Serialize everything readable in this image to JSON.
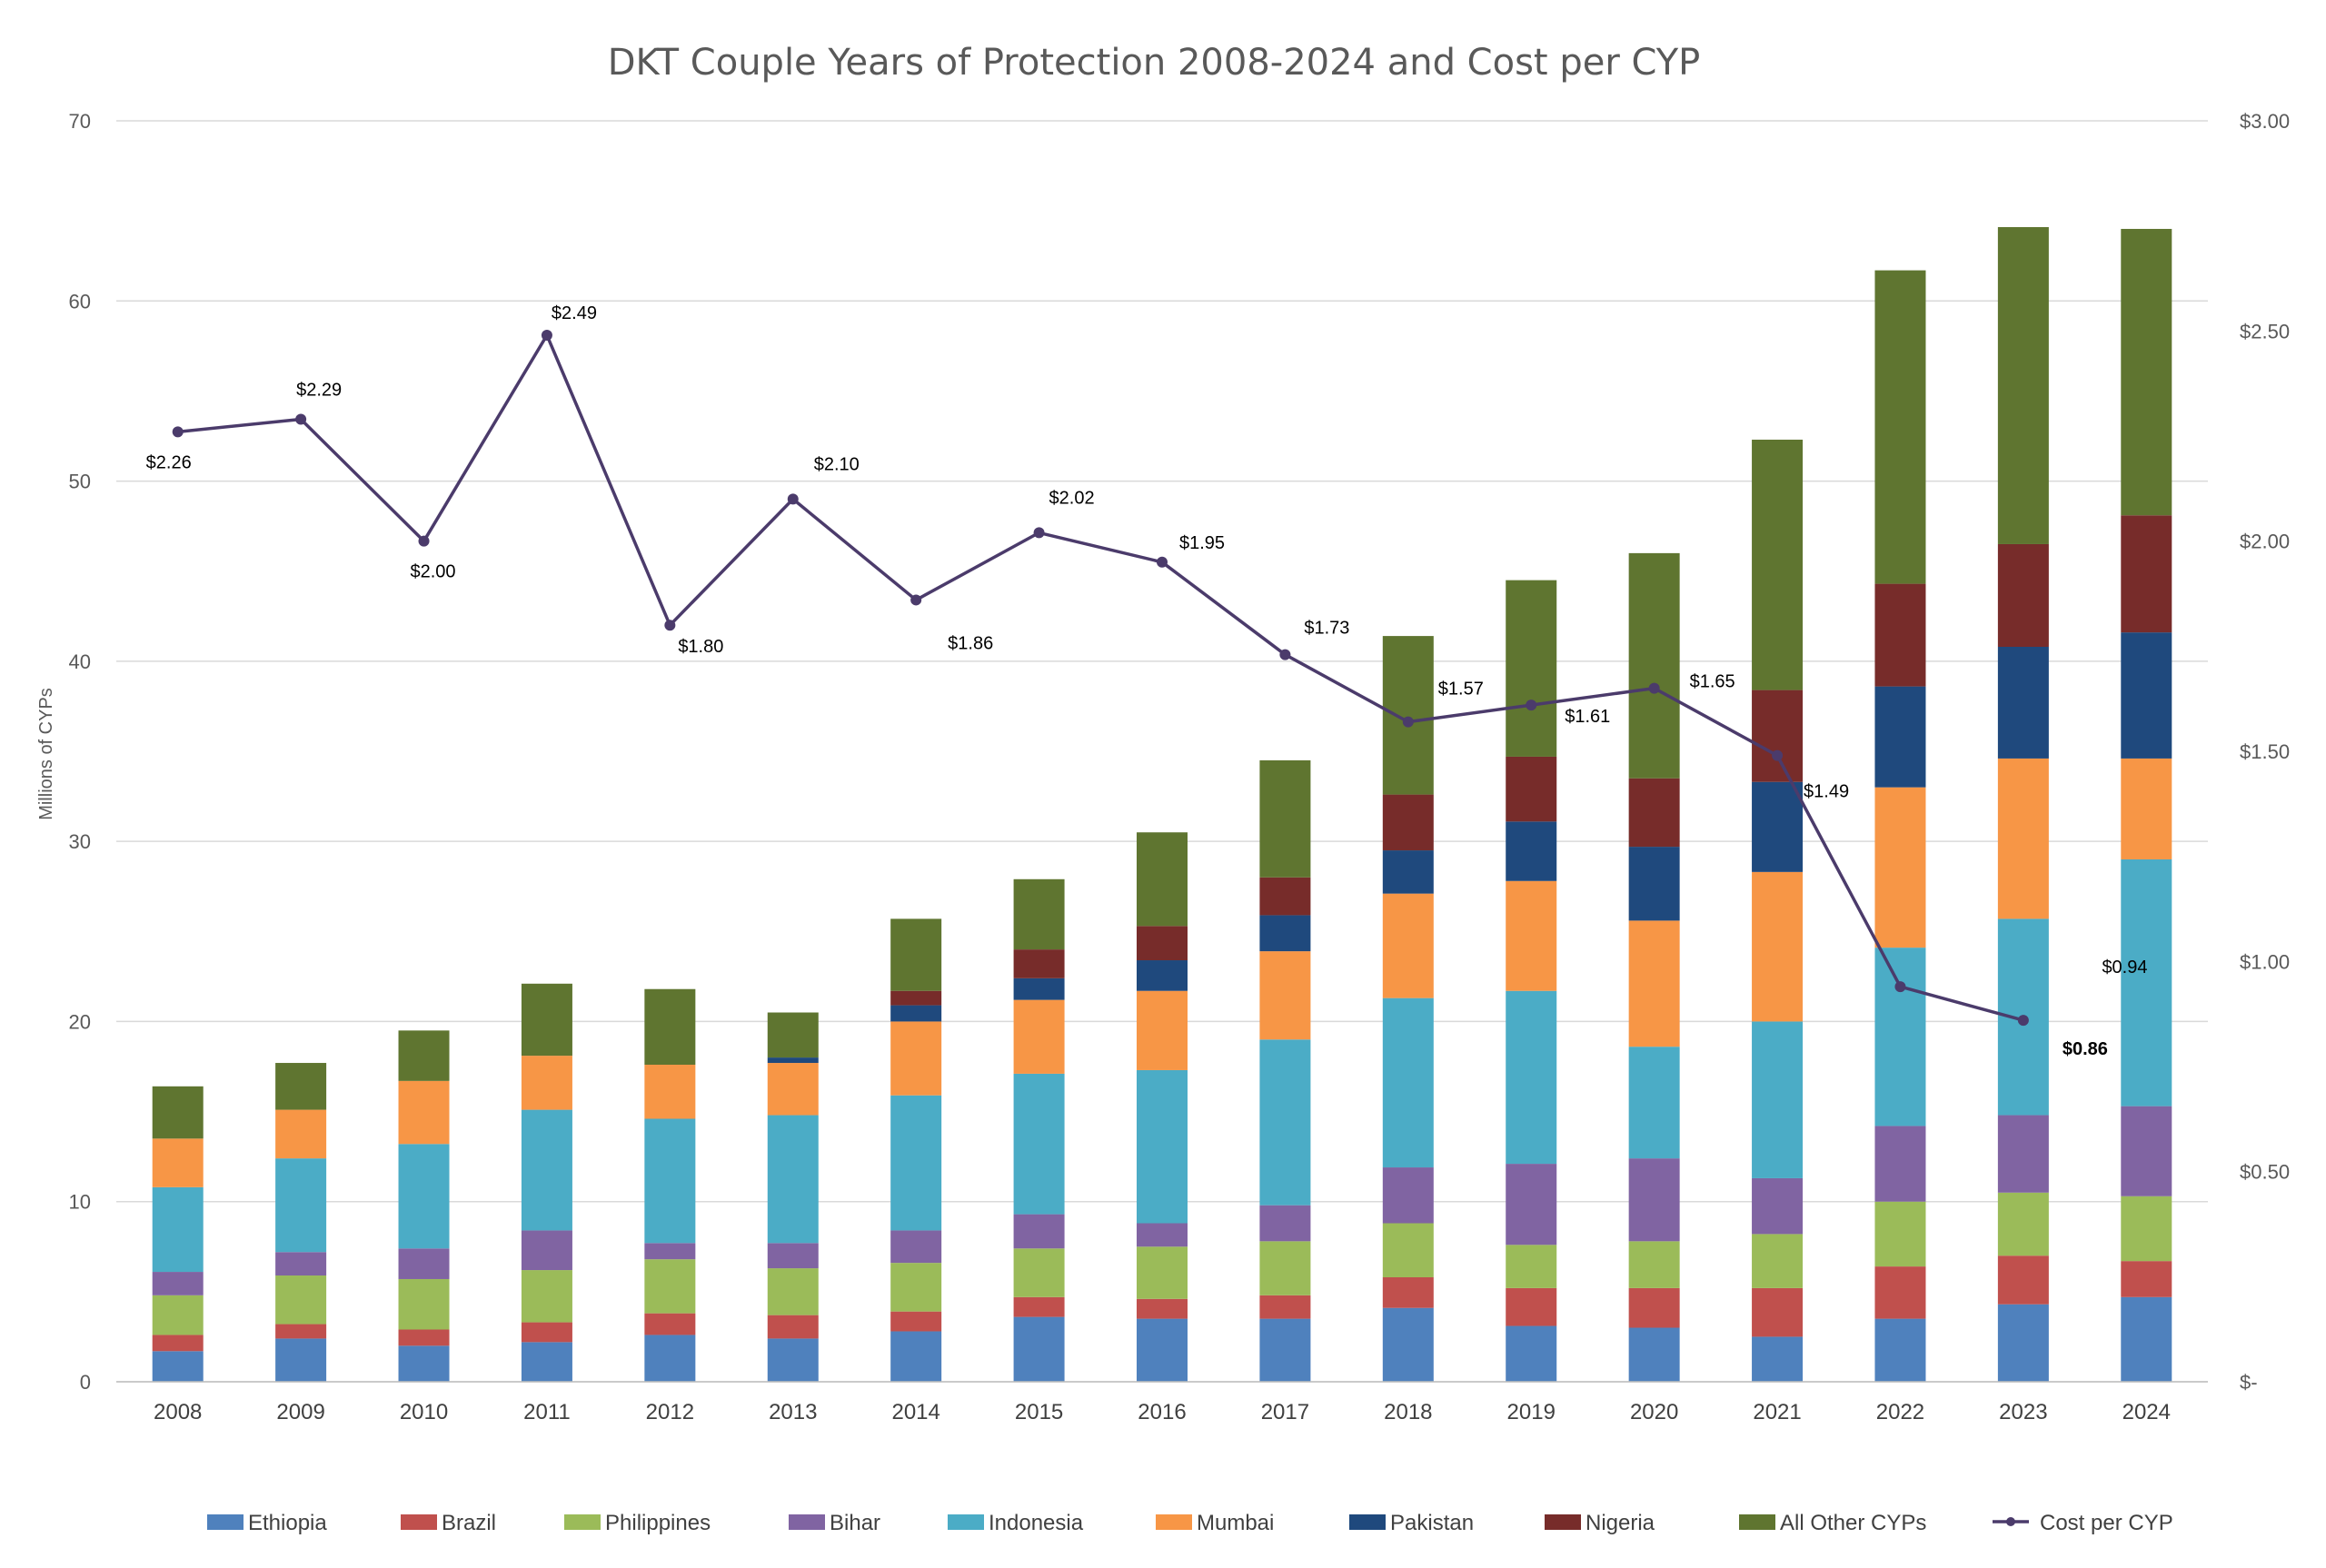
{
  "chart_data": {
    "type": "bar",
    "stacked": true,
    "title": "DKT Couple Years of Protection 2008-2024 and Cost per CYP",
    "ylabel": "Millions of CYPs",
    "y2label": "",
    "ylim": [
      0,
      70
    ],
    "y2lim": [
      0,
      3.0
    ],
    "yticks": [
      "0",
      "10",
      "20",
      "30",
      "40",
      "50",
      "60",
      "70"
    ],
    "y2ticks": [
      "$-",
      "$0.50",
      "$1.00",
      "$1.50",
      "$2.00",
      "$2.50",
      "$3.00"
    ],
    "grid": true,
    "legend_position": "bottom",
    "categories": [
      "2008",
      "2009",
      "2010",
      "2011",
      "2012",
      "2013",
      "2014",
      "2015",
      "2016",
      "2017",
      "2018",
      "2019",
      "2020",
      "2021",
      "2022",
      "2023",
      "2024"
    ],
    "series": [
      {
        "name": "Ethiopia",
        "color": "#4f81bd",
        "values": [
          1.7,
          2.4,
          2.0,
          2.2,
          2.6,
          2.4,
          2.8,
          3.6,
          3.5,
          3.5,
          4.1,
          3.1,
          3.0,
          2.5,
          3.5,
          4.3,
          4.7
        ]
      },
      {
        "name": "Brazil",
        "color": "#c0504d",
        "values": [
          0.9,
          0.8,
          0.9,
          1.1,
          1.2,
          1.3,
          1.1,
          1.1,
          1.1,
          1.3,
          1.7,
          2.1,
          2.2,
          2.7,
          2.9,
          2.7,
          2.0
        ]
      },
      {
        "name": "Philippines",
        "color": "#9bbb59",
        "values": [
          2.2,
          2.7,
          2.8,
          2.9,
          3.0,
          2.6,
          2.7,
          2.7,
          2.9,
          3.0,
          3.0,
          2.4,
          2.6,
          3.0,
          3.6,
          3.5,
          3.6
        ]
      },
      {
        "name": "Bihar",
        "color": "#8064a2",
        "values": [
          1.3,
          1.3,
          1.7,
          2.2,
          0.9,
          1.4,
          1.8,
          1.9,
          1.3,
          2.0,
          3.1,
          4.5,
          4.6,
          3.1,
          4.2,
          4.3,
          5.0
        ]
      },
      {
        "name": "Indonesia",
        "color": "#4bacc6",
        "values": [
          4.7,
          5.2,
          5.8,
          6.7,
          6.9,
          7.1,
          7.5,
          7.8,
          8.5,
          9.2,
          9.4,
          9.6,
          6.2,
          8.7,
          9.9,
          10.9,
          13.7
        ]
      },
      {
        "name": "Mumbai",
        "color": "#f79646",
        "values": [
          2.7,
          2.7,
          3.5,
          3.0,
          3.0,
          2.9,
          4.1,
          4.1,
          4.4,
          4.9,
          5.8,
          6.1,
          7.0,
          8.3,
          8.9,
          8.9,
          5.6
        ]
      },
      {
        "name": "Pakistan",
        "color": "#1f497d",
        "values": [
          0,
          0,
          0,
          0,
          0,
          0.3,
          0.9,
          1.2,
          1.7,
          2.0,
          2.4,
          3.3,
          4.1,
          5.0,
          5.6,
          6.2,
          7.0
        ]
      },
      {
        "name": "Nigeria",
        "color": "#772c2a",
        "values": [
          0,
          0,
          0,
          0,
          0,
          0,
          0.8,
          1.6,
          1.9,
          2.1,
          3.1,
          3.6,
          3.8,
          5.1,
          5.7,
          5.7,
          6.5
        ]
      },
      {
        "name": "All Other CYPs",
        "color": "#5f7530",
        "values": [
          2.9,
          2.6,
          2.8,
          4.0,
          4.2,
          2.5,
          4.0,
          3.9,
          5.2,
          6.5,
          8.8,
          9.8,
          12.5,
          13.9,
          17.4,
          17.6,
          15.9
        ]
      }
    ],
    "line": {
      "name": "Cost per CYP",
      "color": "#4b3b6b",
      "axis": "right",
      "values": [
        2.26,
        2.29,
        2.0,
        2.49,
        1.8,
        2.1,
        1.86,
        2.02,
        1.95,
        1.73,
        1.57,
        1.61,
        1.65,
        1.49,
        0.94,
        0.86,
        null
      ],
      "labels": [
        "$2.26",
        "$2.29",
        "$2.00",
        "$2.49",
        "$1.80",
        "$2.10",
        "$1.86",
        "$2.02",
        "$1.95",
        "$1.73",
        "$1.57",
        "$1.61",
        "$1.65",
        "$1.49",
        "$0.94",
        "$0.86",
        ""
      ]
    }
  }
}
